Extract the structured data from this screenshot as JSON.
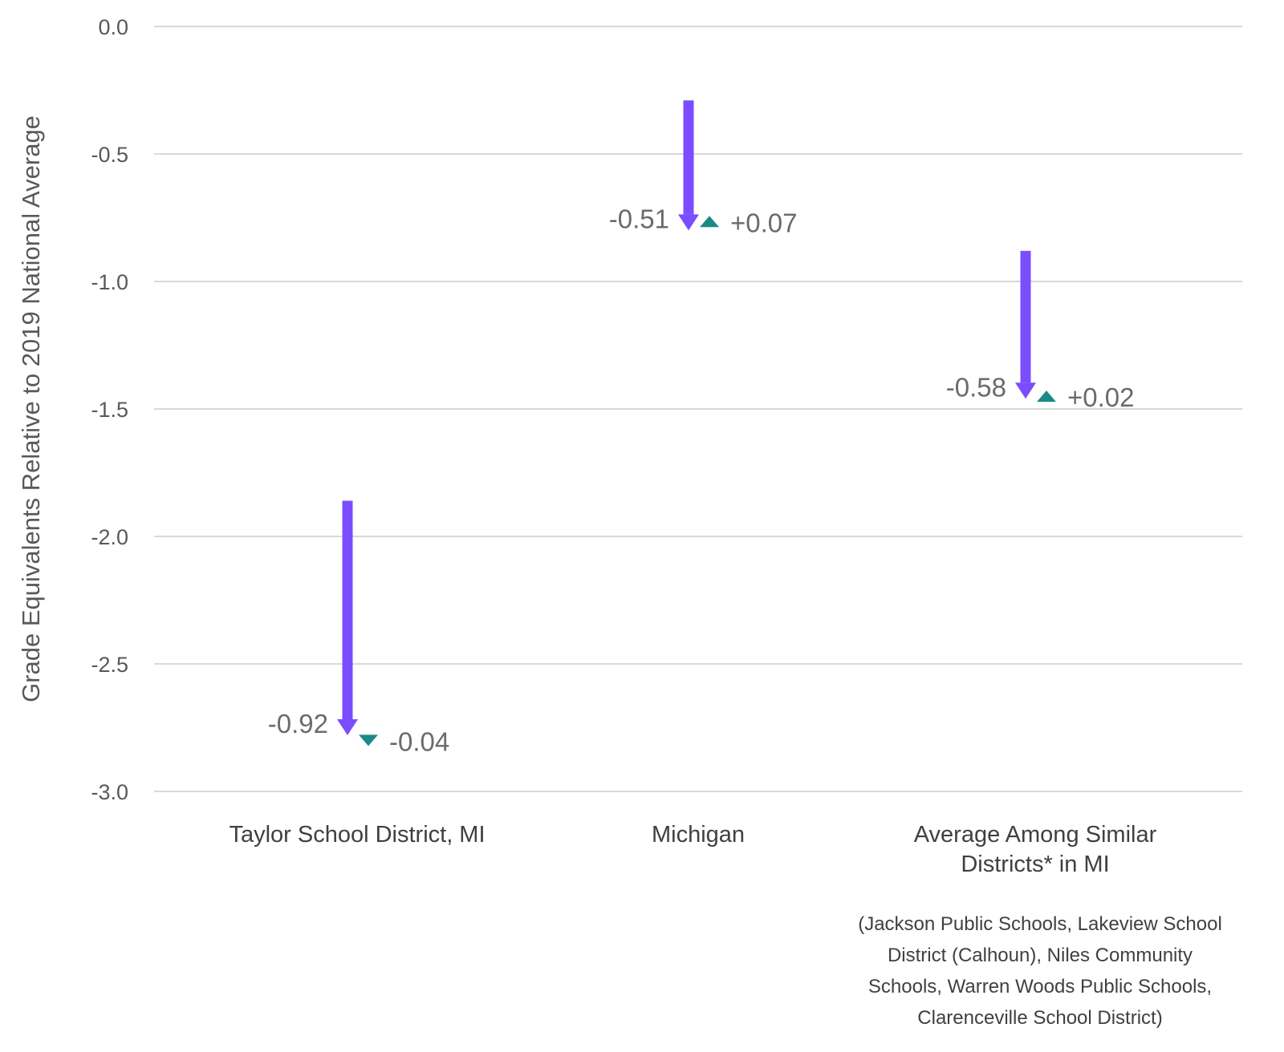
{
  "chart_data": {
    "type": "arrow-change",
    "ylabel": "Grade Equivalents Relative to 2019 National Average",
    "ylim": [
      -3.0,
      0.0
    ],
    "yticks": [
      0.0,
      -0.5,
      -1.0,
      -1.5,
      -2.0,
      -2.5,
      -3.0
    ],
    "ytick_labels": [
      "0.0",
      "-0.5",
      "-1.0",
      "-1.5",
      "-2.0",
      "-2.5",
      "-3.0"
    ],
    "grid": true,
    "categories": [
      "Taylor School District, MI",
      "Michigan",
      "Average Among Similar Districts* in MI"
    ],
    "category_label_lines": [
      [
        "Taylor School District, MI"
      ],
      [
        "Michigan"
      ],
      [
        "Average Among Similar",
        "Districts* in MI"
      ]
    ],
    "series": [
      {
        "start": [
          -1.86,
          -0.29,
          -0.88
        ],
        "end": [
          -2.78,
          -0.8,
          -1.46
        ],
        "change_labels": [
          "-0.92",
          "-0.51",
          "-0.58"
        ],
        "color": "#7b4dff"
      },
      {
        "start": [
          -2.78,
          -0.8,
          -1.46
        ],
        "end": [
          -2.82,
          -0.73,
          -1.44
        ],
        "change_labels": [
          "-0.04",
          "+0.07",
          "+0.02"
        ],
        "color": "#1a8a87"
      }
    ],
    "footnote_lines": [
      "(Jackson Public Schools, Lakeview School",
      "District (Calhoun), Niles Community",
      "Schools, Warren Woods Public Schools,",
      "Clarenceville School District)"
    ],
    "colors": {
      "drop_arrow": "#7b4dff",
      "recovery_marker": "#1a8a87",
      "grid": "#d9d9d9"
    }
  }
}
